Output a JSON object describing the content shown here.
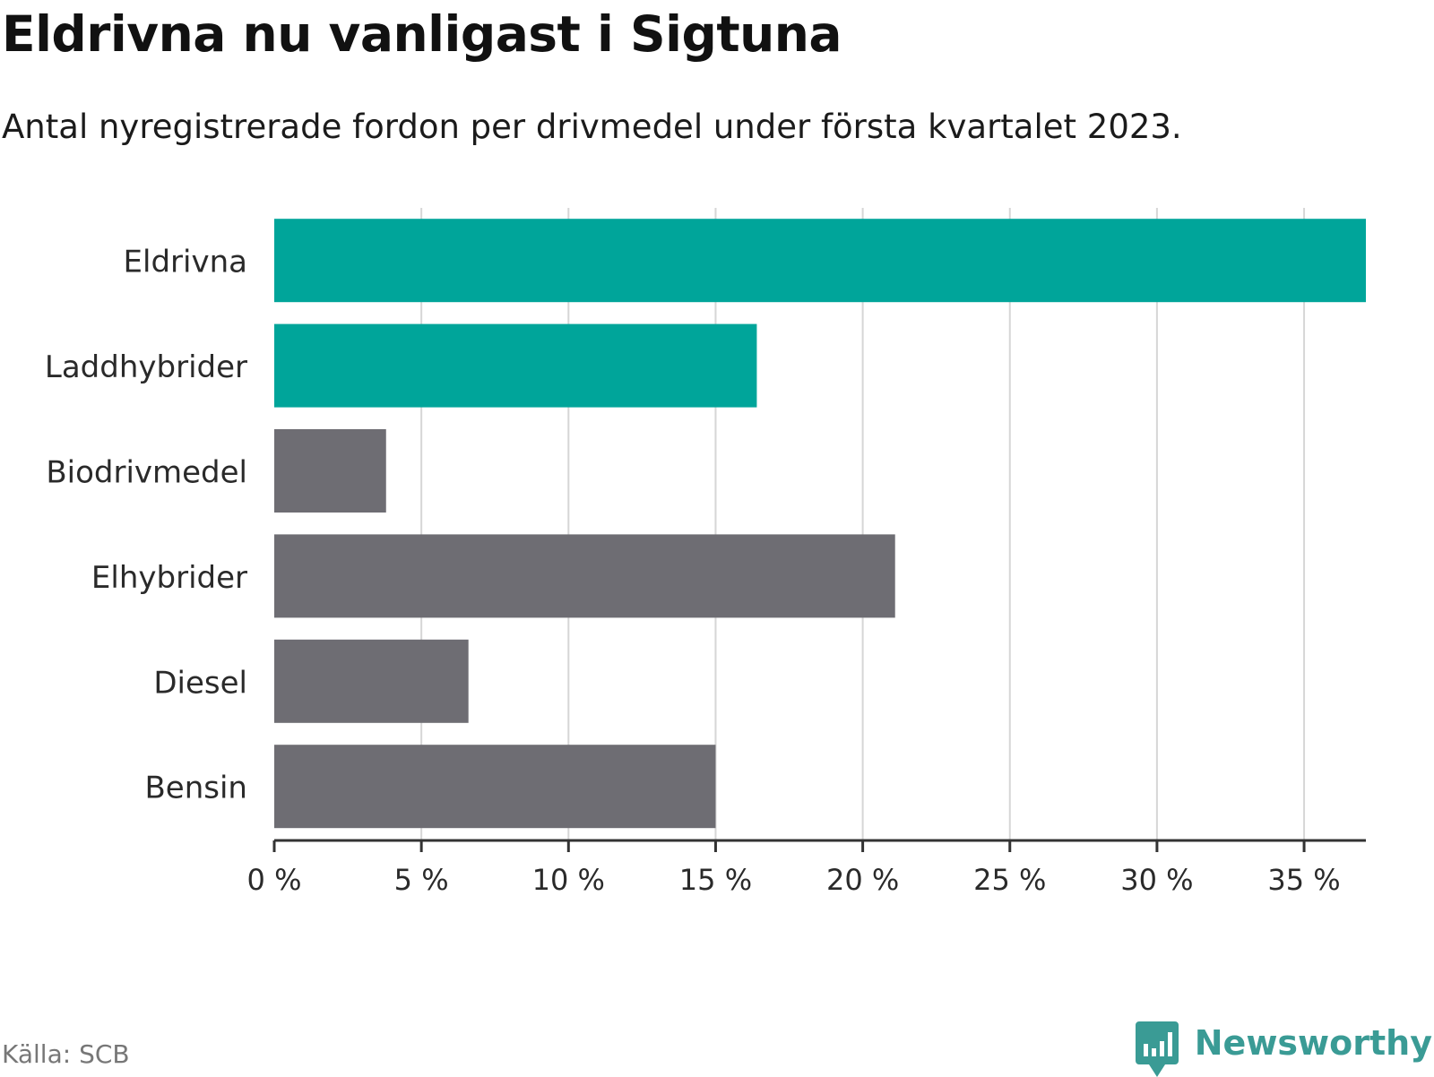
{
  "header": {
    "title": "Eldrivna nu vanligast i Sigtuna",
    "subtitle": "Antal nyregistrerade fordon per drivmedel under första kvartalet 2023."
  },
  "footer": {
    "source": "Källa: SCB",
    "brand": "Newsworthy",
    "brand_icon": "bar-chart-speech-bubble-icon"
  },
  "colors": {
    "highlight": "#00a59a",
    "default": "#6e6d73",
    "grid": "#d6d6d6",
    "axis": "#333333",
    "brand": "#3a9b95"
  },
  "chart_data": {
    "type": "bar",
    "orientation": "horizontal",
    "title": "Eldrivna nu vanligast i Sigtuna",
    "subtitle": "Antal nyregistrerade fordon per drivmedel under första kvartalet 2023.",
    "categories": [
      "Eldrivna",
      "Laddhybrider",
      "Biodrivmedel",
      "Elhybrider",
      "Diesel",
      "Bensin"
    ],
    "values": [
      37.1,
      16.4,
      3.8,
      21.1,
      6.6,
      15.0
    ],
    "highlighted": [
      true,
      true,
      false,
      false,
      false,
      false
    ],
    "unit": "%",
    "xlim": [
      0,
      37.1
    ],
    "xticks": [
      0,
      5,
      10,
      15,
      20,
      25,
      30,
      35
    ],
    "xtick_labels": [
      "0 %",
      "5 %",
      "10 %",
      "15 %",
      "20 %",
      "25 %",
      "30 %",
      "35 %"
    ],
    "xlabel": "",
    "ylabel": "",
    "grid": true,
    "legend": "none"
  }
}
